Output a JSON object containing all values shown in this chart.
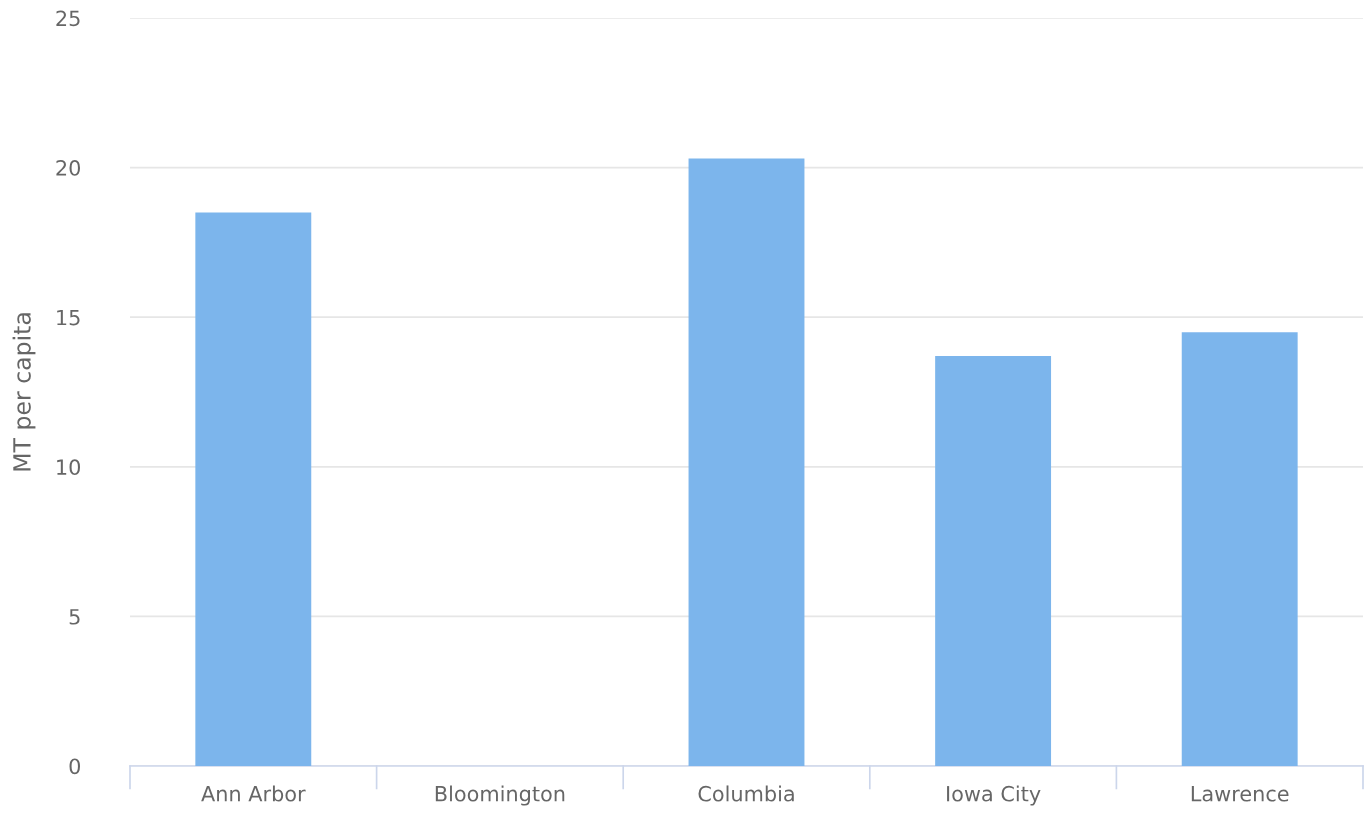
{
  "chart_data": {
    "type": "bar",
    "ylabel": "MT per capita",
    "categories": [
      "Ann Arbor",
      "Bloomington",
      "Columbia",
      "Iowa City",
      "Lawrence"
    ],
    "values": [
      18.5,
      null,
      20.3,
      13.7,
      14.5
    ],
    "color": "#7cb5ec",
    "ylim": [
      0,
      25
    ],
    "yticks": [
      0,
      5,
      10,
      15,
      20,
      25
    ],
    "grid": "y",
    "legend": false
  }
}
